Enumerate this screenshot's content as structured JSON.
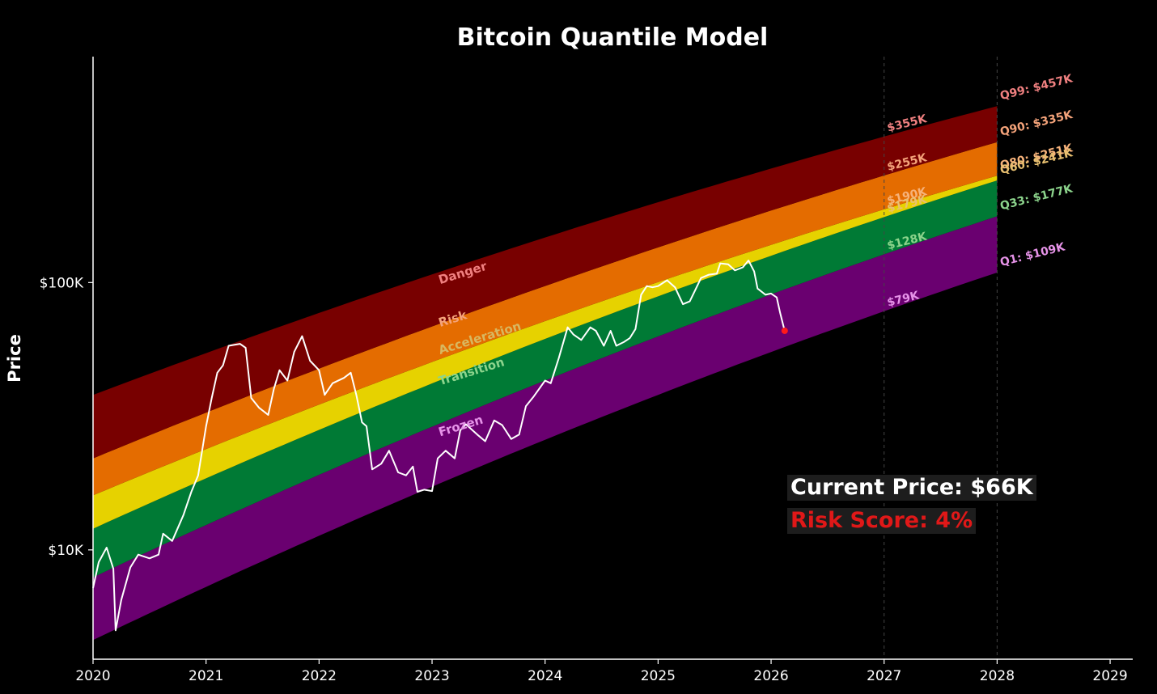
{
  "chart_data": {
    "type": "area",
    "title": "Bitcoin Quantile Model",
    "xlabel": "",
    "ylabel": "Price",
    "y_scale": "log",
    "xlim": [
      2020,
      2029.2
    ],
    "ylim": [
      3900,
      700000
    ],
    "x_ticks": [
      "2020",
      "2021",
      "2022",
      "2023",
      "2024",
      "2025",
      "2026",
      "2027",
      "2028",
      "2029"
    ],
    "y_ticks": [
      {
        "value": 10000,
        "label": "$10K"
      },
      {
        "value": 100000,
        "label": "$100K"
      }
    ],
    "vertical_reference_lines": [
      "2027",
      "2028"
    ],
    "grid": false,
    "quantile_lines": [
      {
        "name": "Q1",
        "start_2020": 4600,
        "end_2028": 109000
      },
      {
        "name": "Q33",
        "start_2020": 7900,
        "end_2028": 177000
      },
      {
        "name": "Q60",
        "start_2020": 12000,
        "end_2028": 241000
      },
      {
        "name": "Q80",
        "start_2020": 16000,
        "end_2028": 251000
      },
      {
        "name": "Q90",
        "start_2020": 22000,
        "end_2028": 335000
      },
      {
        "name": "Q99",
        "start_2020": 38000,
        "end_2028": 457000
      }
    ],
    "bands": [
      {
        "name": "Frozen",
        "lower": "Q1",
        "upper": "Q33",
        "color": "#6a0070",
        "label_color": "#e693e8"
      },
      {
        "name": "Transition",
        "lower": "Q33",
        "upper": "Q60",
        "color": "#007a35",
        "label_color": "#8cd48c"
      },
      {
        "name": "Acceleration",
        "lower": "Q60",
        "upper": "Q80",
        "color": "#e6d200",
        "label_color": "#d8b860"
      },
      {
        "name": "Risk",
        "lower": "Q80",
        "upper": "Q90",
        "color": "#e46c00",
        "label_color": "#f4a37a"
      },
      {
        "name": "Danger",
        "lower": "Q90",
        "upper": "Q99",
        "color": "#780000",
        "label_color": "#f08080"
      }
    ],
    "end_labels_2028": [
      {
        "text": "Q99: $457K",
        "color": "#f08080"
      },
      {
        "text": "Q90: $335K",
        "color": "#f4a37a"
      },
      {
        "text": "Q80: $251K",
        "color": "#f6b27a"
      },
      {
        "text": "Q60: $241K",
        "color": "#e8c070"
      },
      {
        "text": "Q33: $177K",
        "color": "#8cd48c"
      },
      {
        "text": "Q1: $109K",
        "color": "#e693e8"
      }
    ],
    "mid_labels_2027": [
      {
        "text": "$355K",
        "color": "#f08080"
      },
      {
        "text": "$255K",
        "color": "#f4a37a"
      },
      {
        "text": "$190K",
        "color": "#f6b27a"
      },
      {
        "text": "$179K",
        "color": "#e8c070"
      },
      {
        "text": "$128K",
        "color": "#8cd48c"
      },
      {
        "text": "$79K",
        "color": "#e693e8"
      }
    ],
    "price_series": {
      "name": "",
      "color": "#ffffff",
      "points": [
        [
          2020.0,
          7200
        ],
        [
          2020.05,
          9000
        ],
        [
          2020.12,
          10200
        ],
        [
          2020.18,
          8500
        ],
        [
          2020.2,
          5000
        ],
        [
          2020.25,
          6500
        ],
        [
          2020.33,
          8600
        ],
        [
          2020.4,
          9600
        ],
        [
          2020.5,
          9300
        ],
        [
          2020.58,
          9600
        ],
        [
          2020.62,
          11500
        ],
        [
          2020.7,
          10800
        ],
        [
          2020.8,
          13500
        ],
        [
          2020.87,
          16500
        ],
        [
          2020.93,
          19000
        ],
        [
          2021.0,
          29000
        ],
        [
          2021.05,
          37000
        ],
        [
          2021.1,
          46000
        ],
        [
          2021.15,
          49000
        ],
        [
          2021.2,
          58000
        ],
        [
          2021.3,
          59000
        ],
        [
          2021.35,
          57000
        ],
        [
          2021.4,
          37000
        ],
        [
          2021.47,
          34000
        ],
        [
          2021.55,
          32000
        ],
        [
          2021.6,
          40000
        ],
        [
          2021.65,
          47000
        ],
        [
          2021.72,
          43000
        ],
        [
          2021.78,
          55000
        ],
        [
          2021.85,
          63000
        ],
        [
          2021.92,
          51000
        ],
        [
          2022.0,
          47000
        ],
        [
          2022.05,
          38000
        ],
        [
          2022.12,
          42000
        ],
        [
          2022.22,
          44000
        ],
        [
          2022.28,
          46000
        ],
        [
          2022.33,
          38000
        ],
        [
          2022.38,
          30000
        ],
        [
          2022.42,
          29000
        ],
        [
          2022.47,
          20000
        ],
        [
          2022.55,
          21000
        ],
        [
          2022.62,
          23500
        ],
        [
          2022.7,
          19500
        ],
        [
          2022.77,
          19000
        ],
        [
          2022.83,
          20500
        ],
        [
          2022.87,
          16500
        ],
        [
          2022.93,
          16800
        ],
        [
          2023.0,
          16600
        ],
        [
          2023.05,
          22000
        ],
        [
          2023.12,
          23500
        ],
        [
          2023.2,
          22000
        ],
        [
          2023.25,
          28000
        ],
        [
          2023.3,
          29500
        ],
        [
          2023.4,
          27000
        ],
        [
          2023.47,
          25500
        ],
        [
          2023.55,
          30500
        ],
        [
          2023.62,
          29300
        ],
        [
          2023.7,
          26000
        ],
        [
          2023.77,
          27000
        ],
        [
          2023.83,
          34500
        ],
        [
          2023.9,
          37500
        ],
        [
          2024.0,
          43000
        ],
        [
          2024.05,
          42000
        ],
        [
          2024.12,
          52000
        ],
        [
          2024.2,
          68000
        ],
        [
          2024.25,
          64000
        ],
        [
          2024.32,
          61000
        ],
        [
          2024.4,
          68000
        ],
        [
          2024.45,
          66000
        ],
        [
          2024.52,
          58000
        ],
        [
          2024.58,
          66000
        ],
        [
          2024.63,
          58000
        ],
        [
          2024.7,
          60000
        ],
        [
          2024.75,
          62000
        ],
        [
          2024.8,
          67000
        ],
        [
          2024.85,
          90000
        ],
        [
          2024.9,
          97000
        ],
        [
          2024.95,
          96000
        ],
        [
          2025.0,
          97000
        ],
        [
          2025.08,
          102000
        ],
        [
          2025.15,
          96000
        ],
        [
          2025.22,
          83000
        ],
        [
          2025.28,
          85000
        ],
        [
          2025.33,
          94000
        ],
        [
          2025.38,
          104000
        ],
        [
          2025.45,
          107000
        ],
        [
          2025.52,
          108000
        ],
        [
          2025.55,
          118000
        ],
        [
          2025.62,
          117000
        ],
        [
          2025.68,
          111000
        ],
        [
          2025.75,
          114000
        ],
        [
          2025.8,
          121000
        ],
        [
          2025.85,
          110000
        ],
        [
          2025.88,
          95000
        ],
        [
          2025.95,
          90000
        ],
        [
          2026.0,
          91000
        ],
        [
          2026.05,
          88000
        ],
        [
          2026.08,
          77000
        ],
        [
          2026.12,
          66000
        ]
      ],
      "current_marker": {
        "x": 2026.12,
        "y": 66000,
        "color": "#ff1a1a"
      }
    }
  },
  "info": {
    "current_price": "Current Price: $66K",
    "risk_score": "Risk Score: 4%"
  }
}
